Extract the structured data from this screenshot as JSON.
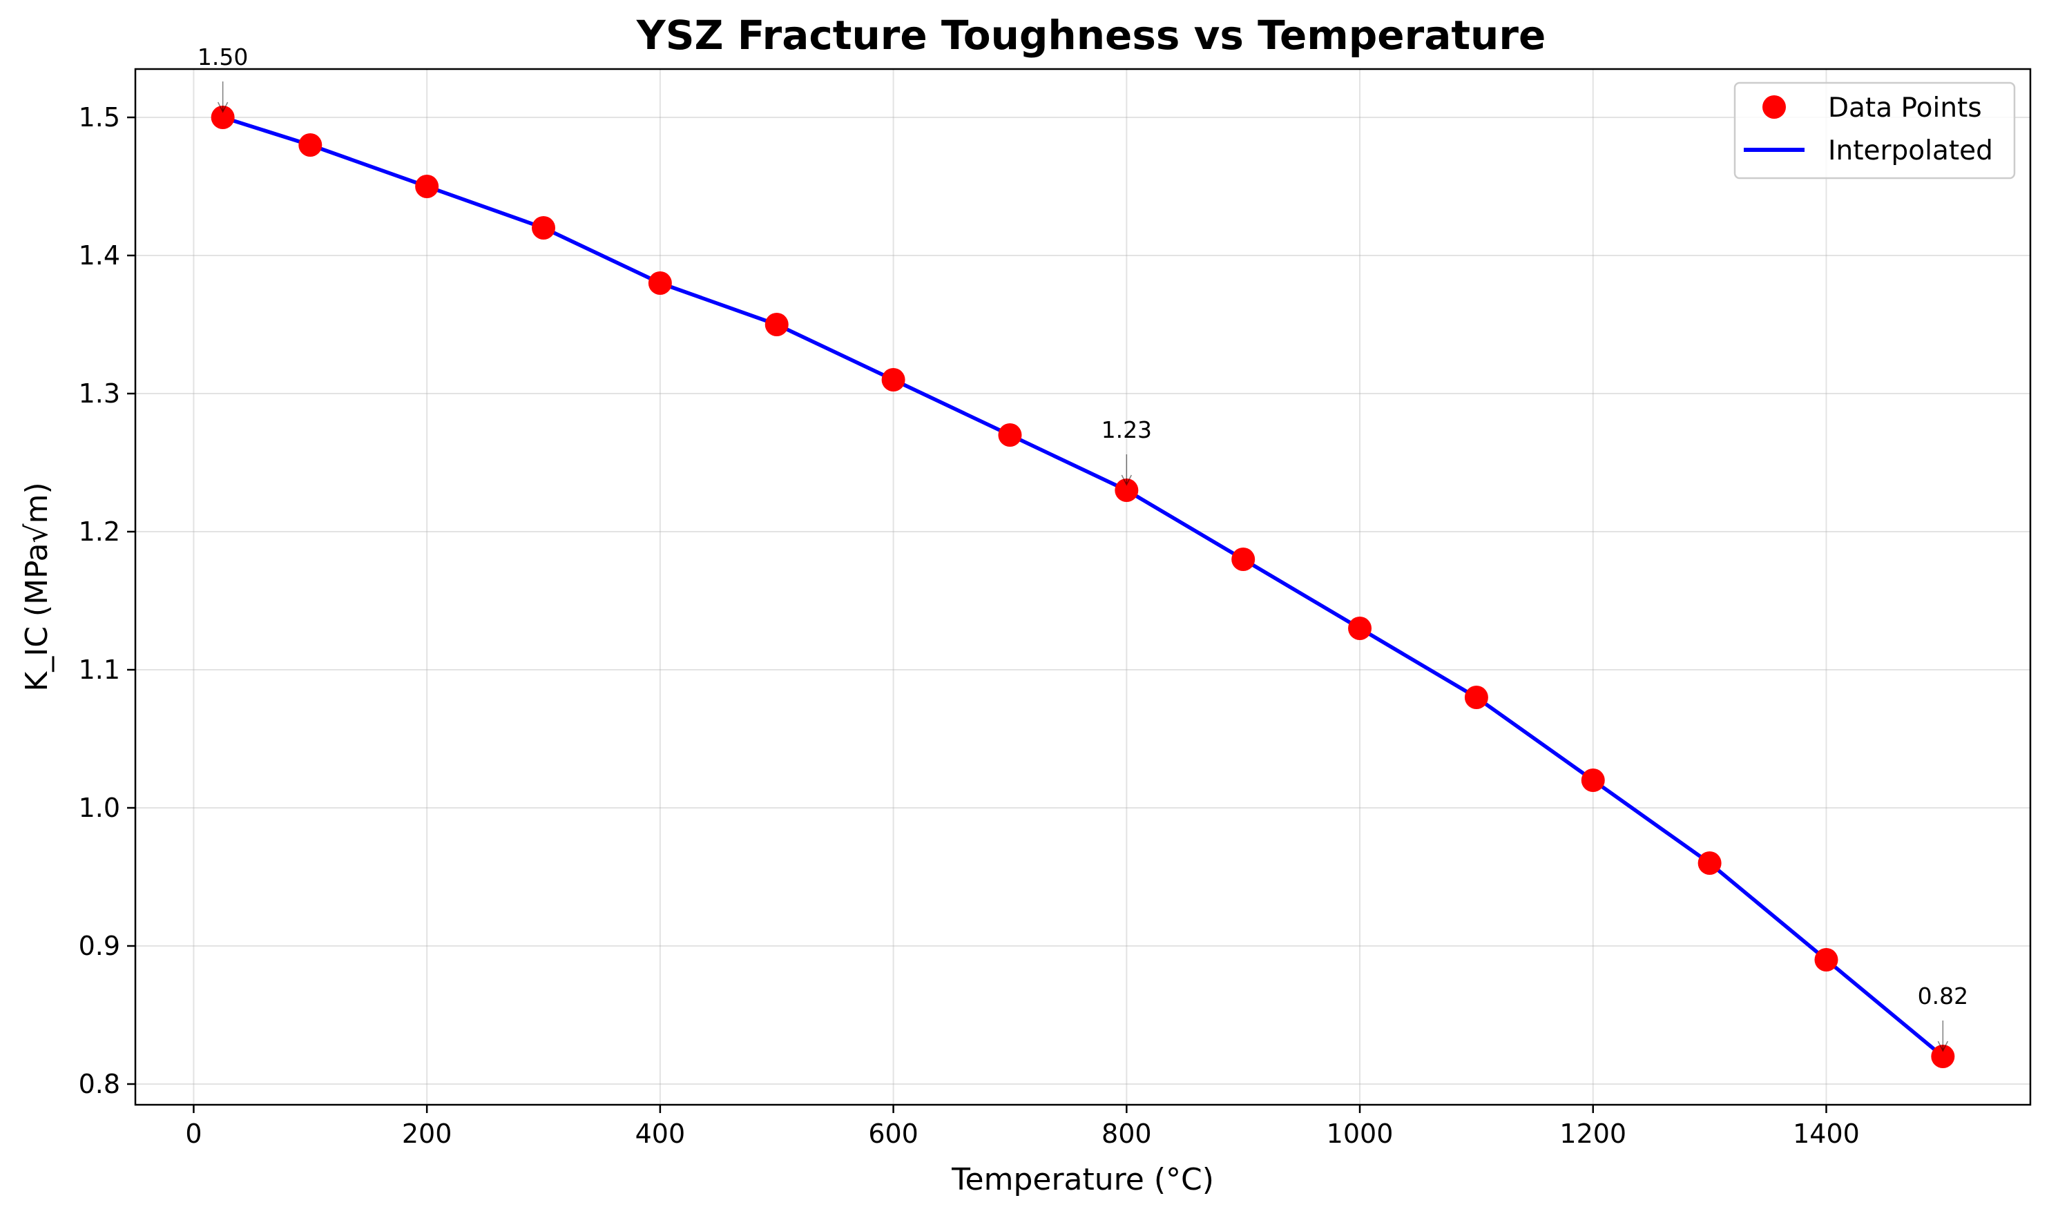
{
  "chart_data": {
    "type": "line",
    "title": "YSZ Fracture Toughness vs Temperature",
    "xlabel": "Temperature (°C)",
    "ylabel": "K_IC (MPa√m)",
    "xlim": [
      -50,
      1575
    ],
    "ylim": [
      0.785,
      1.535
    ],
    "xticks": [
      0,
      200,
      400,
      600,
      800,
      1000,
      1200,
      1400
    ],
    "yticks": [
      0.8,
      0.9,
      1.0,
      1.1,
      1.2,
      1.3,
      1.4,
      1.5
    ],
    "ytick_labels": [
      "0.8",
      "0.9",
      "1.0",
      "1.1",
      "1.2",
      "1.3",
      "1.4",
      "1.5"
    ],
    "grid": true,
    "legend_position": "top-right",
    "series": [
      {
        "name": "Data Points",
        "kind": "scatter",
        "color": "#ff0000",
        "x": [
          25,
          100,
          200,
          300,
          400,
          500,
          600,
          700,
          800,
          900,
          1000,
          1100,
          1200,
          1300,
          1400,
          1500
        ],
        "y": [
          1.5,
          1.48,
          1.45,
          1.42,
          1.38,
          1.35,
          1.31,
          1.27,
          1.23,
          1.18,
          1.13,
          1.08,
          1.02,
          0.96,
          0.89,
          0.82
        ]
      },
      {
        "name": "Interpolated",
        "kind": "line",
        "color": "#0000ff",
        "x": [
          25,
          100,
          200,
          300,
          400,
          500,
          600,
          700,
          800,
          900,
          1000,
          1100,
          1200,
          1300,
          1400,
          1500
        ],
        "y": [
          1.5,
          1.48,
          1.45,
          1.42,
          1.38,
          1.35,
          1.31,
          1.27,
          1.23,
          1.18,
          1.13,
          1.08,
          1.02,
          0.96,
          0.89,
          0.82
        ]
      }
    ],
    "annotations": [
      {
        "text": "1.50",
        "x": 25,
        "y": 1.5
      },
      {
        "text": "1.23",
        "x": 800,
        "y": 1.23
      },
      {
        "text": "0.82",
        "x": 1500,
        "y": 0.82
      }
    ]
  }
}
